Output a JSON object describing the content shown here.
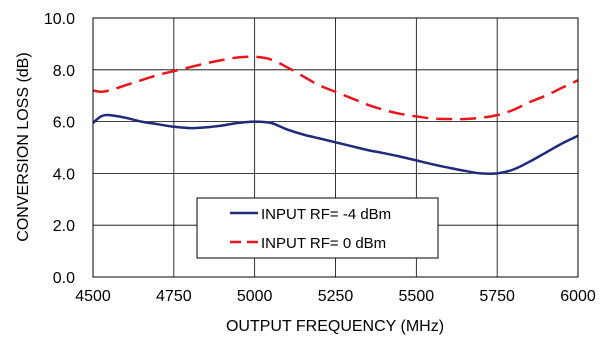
{
  "chart_data": {
    "type": "line",
    "title": "",
    "xlabel": "OUTPUT FREQUENCY (MHz)",
    "ylabel": "CONVERSION LOSS (dB)",
    "xlim": [
      4500,
      6000
    ],
    "ylim": [
      0,
      10
    ],
    "x_ticks": [
      4500,
      4750,
      5000,
      5250,
      5500,
      5750,
      6000
    ],
    "x_tick_labels": [
      "4500",
      "4750",
      "5000",
      "5250",
      "5500",
      "5750",
      "6000"
    ],
    "y_ticks": [
      0,
      2,
      4,
      6,
      8,
      10
    ],
    "y_tick_labels": [
      "0.0",
      "2.0",
      "4.0",
      "6.0",
      "8.0",
      "10.0"
    ],
    "grid": true,
    "legend_position": "lower-center",
    "series": [
      {
        "name": "INPUT RF= -4 dBm",
        "color": "#1f2a78",
        "style": "solid",
        "x": [
          4500,
          4525,
          4550,
          4600,
          4650,
          4700,
          4750,
          4800,
          4850,
          4900,
          4950,
          5000,
          5050,
          5100,
          5150,
          5200,
          5250,
          5300,
          5350,
          5400,
          5450,
          5500,
          5550,
          5600,
          5650,
          5700,
          5750,
          5800,
          5850,
          5900,
          5950,
          6000
        ],
        "y": [
          5.95,
          6.2,
          6.25,
          6.15,
          6.0,
          5.9,
          5.8,
          5.75,
          5.78,
          5.85,
          5.95,
          6.0,
          5.95,
          5.7,
          5.5,
          5.35,
          5.2,
          5.05,
          4.9,
          4.78,
          4.65,
          4.5,
          4.35,
          4.22,
          4.1,
          4.0,
          4.0,
          4.15,
          4.45,
          4.8,
          5.15,
          5.45
        ]
      },
      {
        "name": "INPUT RF= 0 dBm",
        "color": "#e8161c",
        "style": "dashed",
        "x": [
          4500,
          4525,
          4550,
          4600,
          4650,
          4700,
          4750,
          4800,
          4850,
          4900,
          4950,
          5000,
          5050,
          5100,
          5150,
          5200,
          5250,
          5300,
          5350,
          5400,
          5450,
          5500,
          5550,
          5600,
          5650,
          5700,
          5750,
          5800,
          5850,
          5900,
          5950,
          6000
        ],
        "y": [
          7.2,
          7.15,
          7.2,
          7.4,
          7.6,
          7.8,
          7.95,
          8.1,
          8.25,
          8.38,
          8.48,
          8.5,
          8.4,
          8.1,
          7.75,
          7.4,
          7.15,
          6.9,
          6.65,
          6.45,
          6.3,
          6.2,
          6.12,
          6.1,
          6.1,
          6.15,
          6.25,
          6.45,
          6.75,
          7.0,
          7.3,
          7.6
        ]
      }
    ]
  }
}
